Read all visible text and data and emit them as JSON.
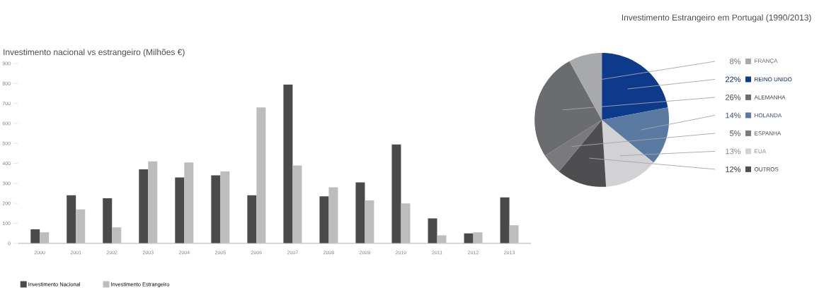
{
  "chart_data": [
    {
      "type": "bar",
      "title": "Investimento nacional vs estrangeiro (Milhões €)",
      "categories": [
        "2000",
        "2001",
        "2002",
        "2003",
        "2004",
        "2005",
        "2006",
        "2007",
        "2008",
        "2009",
        "2010",
        "2011",
        "2012",
        "2013"
      ],
      "series": [
        {
          "name": "Investimento Nacional",
          "color": "#4a4a4c",
          "values": [
            70,
            240,
            225,
            370,
            330,
            340,
            240,
            795,
            235,
            305,
            495,
            125,
            50,
            230
          ]
        },
        {
          "name": "Investimento Estrangeiro",
          "color": "#bdbdbd",
          "values": [
            55,
            170,
            80,
            410,
            405,
            360,
            680,
            390,
            280,
            215,
            200,
            40,
            55,
            90
          ]
        }
      ],
      "ylim": [
        0,
        900
      ],
      "yticks": [
        0,
        100,
        200,
        300,
        400,
        500,
        600,
        700,
        800,
        900
      ],
      "grid": false,
      "legend": "bottom left"
    },
    {
      "type": "pie",
      "title": "Investimento Estrangeiro em Portugal (1990/2013)",
      "categories": [
        "REINO UNIDO",
        "HOLANDA",
        "EUA",
        "OUTROS",
        "ESPANHA",
        "ALEMANHA",
        "FRANÇA"
      ],
      "values": [
        22,
        14,
        13,
        12,
        5,
        26,
        8
      ],
      "colors": [
        "#0e3a8c",
        "#5b7aa2",
        "#d2d2d4",
        "#4e4e50",
        "#7a7a7c",
        "#6b6c70",
        "#a8a9ab"
      ],
      "value_labels": [
        "22%",
        "14%",
        "13%",
        "12%",
        "5%",
        "26%",
        "8%"
      ],
      "legend": "right"
    }
  ]
}
